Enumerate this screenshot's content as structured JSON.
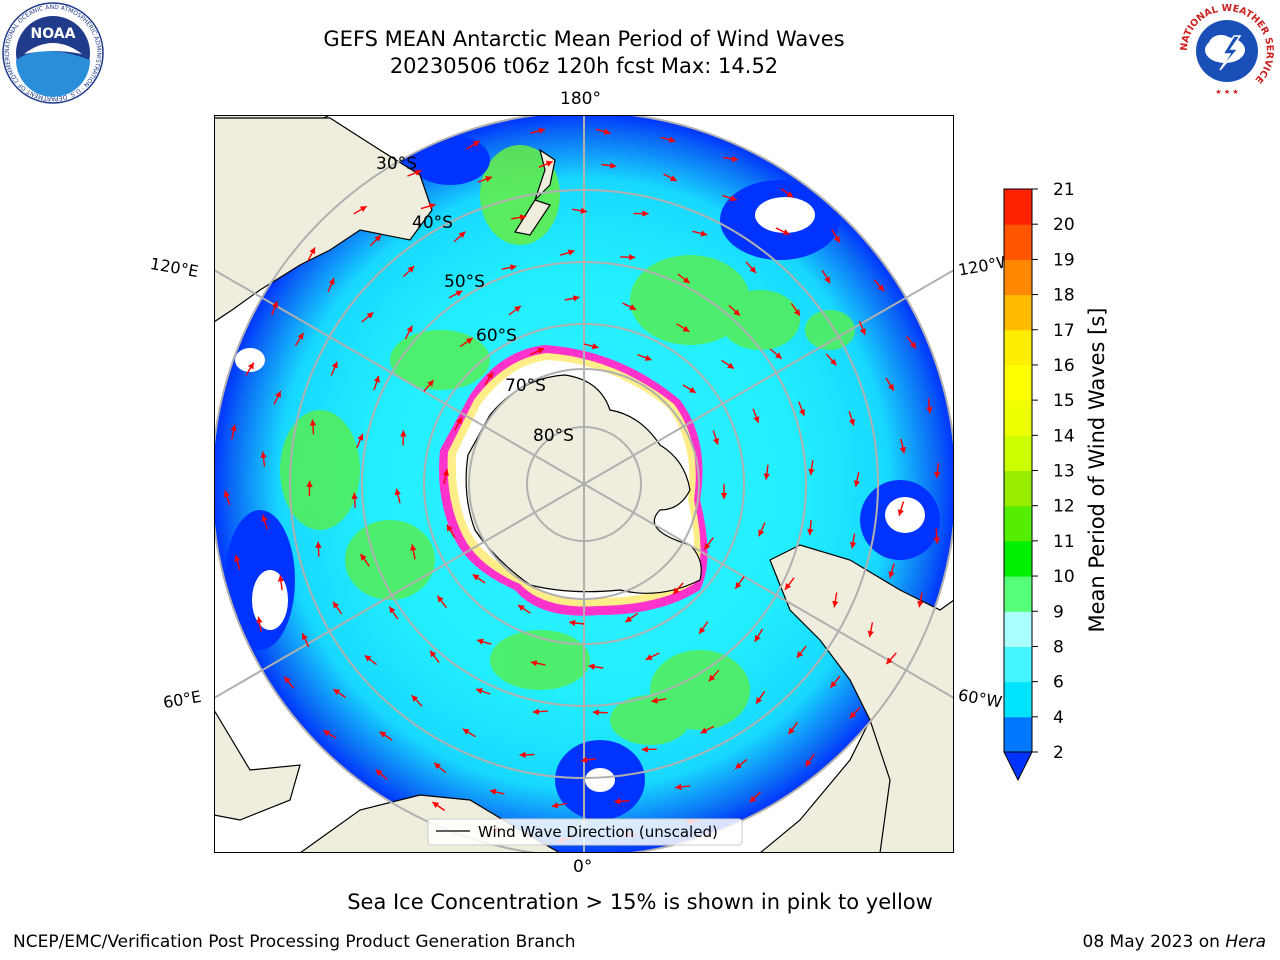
{
  "title": {
    "line1": "GEFS MEAN Antarctic Mean Period of Wind Waves",
    "line2": "20230506 t06z 120h fcst   Max: 14.52"
  },
  "map": {
    "projection": "south-polar-stereographic",
    "longitude_labels": {
      "top": "180°",
      "bottom": "0°",
      "upper_left": "120°E",
      "lower_left": "60°E",
      "upper_right": "120°W",
      "lower_right": "60°W"
    },
    "latitude_labels": [
      "30°S",
      "40°S",
      "50°S",
      "60°S",
      "70°S",
      "80°S"
    ],
    "legend_label": "Wind Wave Direction (unscaled)",
    "arrow_color": "#ff0000",
    "land_color": "#efedde",
    "ice_color": "#ff33cc"
  },
  "colorbar": {
    "label": "Mean Period of Wind Waves [s]",
    "ticks": [
      "2",
      "4",
      "6",
      "8",
      "9",
      "10",
      "11",
      "12",
      "13",
      "14",
      "15",
      "16",
      "17",
      "18",
      "19",
      "20",
      "21"
    ],
    "colors": [
      "#0077ff",
      "#00e5ff",
      "#44f5ff",
      "#aaffff",
      "#55ff77",
      "#00ee00",
      "#55ee00",
      "#99ee00",
      "#ccff00",
      "#eeff00",
      "#ffff00",
      "#ffee00",
      "#ffbb00",
      "#ff8800",
      "#ff5500",
      "#ff2200"
    ],
    "under_color": "#0033ff"
  },
  "note": "Sea Ice Concentration > 15% is shown in pink to yellow",
  "footer": {
    "left": "NCEP/EMC/Verification Post Processing Product Generation Branch",
    "right_date": "08 May 2023 on",
    "right_host": "Hera"
  },
  "logos": {
    "noaa_text": "NOAA",
    "noaa_ring_text": "NATIONAL OCEANIC AND ATMOSPHERIC ADMINISTRATION · U.S. DEPARTMENT OF COMMERCE",
    "nws_ring_text": "NATIONAL WEATHER SERVICE"
  }
}
